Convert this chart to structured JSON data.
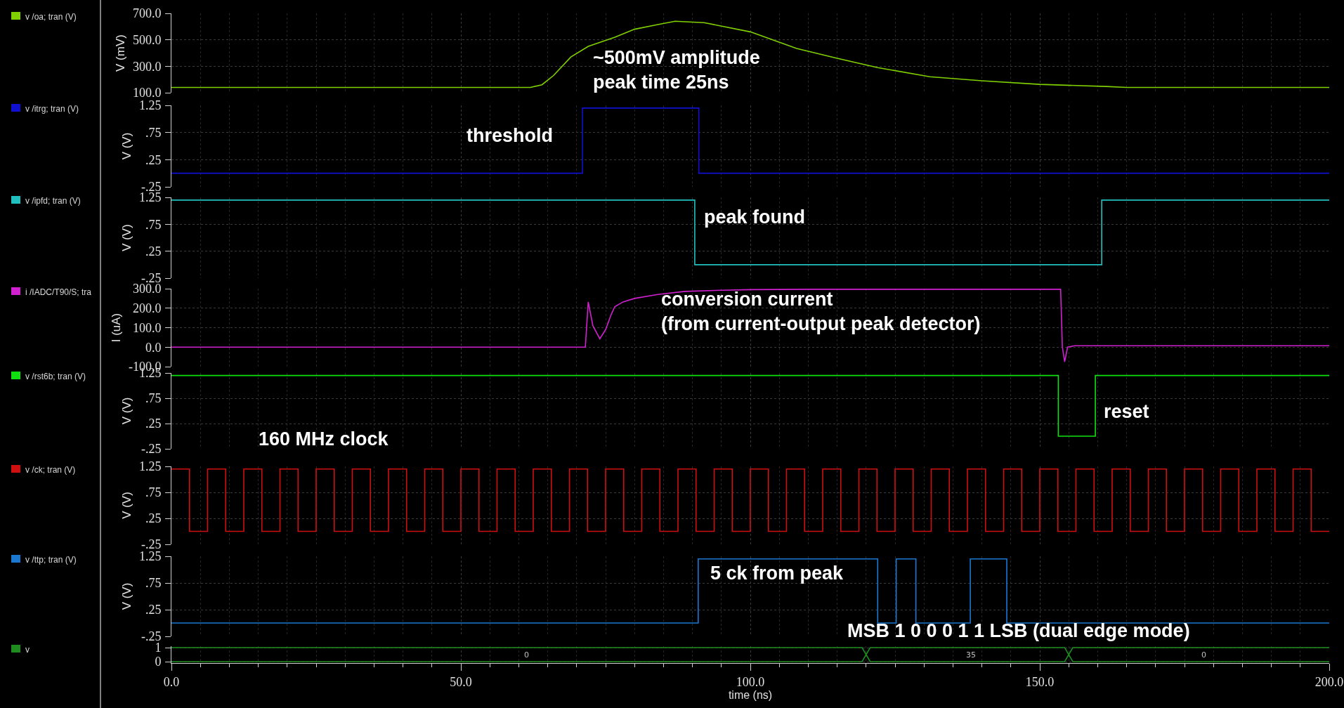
{
  "chart_data": [
    {
      "type": "line",
      "xlim": [
        0,
        200
      ],
      "tick_labels": "y",
      "grid": true,
      "ylabel": "V (mV)",
      "ylim": [
        100,
        700
      ],
      "yticks": [
        {
          "value": 100,
          "label": "100.0"
        },
        {
          "value": 300,
          "label": "300.0"
        },
        {
          "value": 500,
          "label": "500.0"
        },
        {
          "value": 700,
          "label": "700.0"
        }
      ],
      "series": [
        {
          "name": "v /oa; tran (V)",
          "color": "#80d000",
          "x": [
            0,
            62,
            64,
            66,
            69,
            72,
            76.6,
            80,
            84,
            87,
            92,
            100,
            108,
            115,
            122,
            131,
            140,
            150,
            161.5,
            165,
            200
          ],
          "values": [
            140,
            140,
            160,
            230,
            370,
            450,
            519,
            580,
            615,
            640,
            630,
            560,
            434,
            360,
            290,
            221,
            190,
            163,
            147,
            140,
            140
          ]
        }
      ],
      "annotations": [
        "~500mV amplitude\npeak time 25ns"
      ]
    },
    {
      "type": "step",
      "xlim": [
        0,
        200
      ],
      "tick_labels": "y",
      "grid": true,
      "ylabel": "V (V)",
      "ylim": [
        -0.25,
        1.25
      ],
      "yticks": [
        {
          "value": -0.25,
          "label": "-.25"
        },
        {
          "value": 0.25,
          "label": ".25"
        },
        {
          "value": 0.75,
          "label": ".75"
        },
        {
          "value": 1.25,
          "label": "1.25"
        }
      ],
      "series": [
        {
          "name": "v /itrg; tran (V)",
          "color": "#1010d0",
          "x": [
            0,
            71,
            91.1,
            200
          ],
          "values": [
            0,
            1.2,
            0,
            0
          ]
        }
      ],
      "annotations": [
        "threshold"
      ]
    },
    {
      "type": "step",
      "xlim": [
        0,
        200
      ],
      "tick_labels": "y",
      "grid": true,
      "ylabel": "V (V)",
      "ylim": [
        -0.25,
        1.25
      ],
      "yticks": [
        {
          "value": -0.25,
          "label": "-.25"
        },
        {
          "value": 0.25,
          "label": ".25"
        },
        {
          "value": 0.75,
          "label": ".75"
        },
        {
          "value": 1.25,
          "label": "1.25"
        }
      ],
      "series": [
        {
          "name": "v /ipfd; tran (V)",
          "color": "#20c0c0",
          "x": [
            0,
            90.4,
            160.7,
            200
          ],
          "values": [
            1.2,
            0,
            1.2,
            1.2
          ]
        }
      ],
      "annotations": [
        "peak found"
      ]
    },
    {
      "type": "line",
      "xlim": [
        0,
        200
      ],
      "tick_labels": "y",
      "grid": true,
      "ylabel": "I (uA)",
      "ylim": [
        -100,
        300
      ],
      "yticks": [
        {
          "value": -100,
          "label": "-100.0"
        },
        {
          "value": 0,
          "label": "0.0"
        },
        {
          "value": 100,
          "label": "100.0"
        },
        {
          "value": 200,
          "label": "200.0"
        },
        {
          "value": 300,
          "label": "300.0"
        }
      ],
      "series": [
        {
          "name": "i /IADC/T90/S; tra",
          "color": "#d020d0",
          "x": [
            0,
            71.5,
            72,
            72.8,
            74,
            75,
            76,
            76.6,
            78,
            80,
            84,
            88.7,
            95,
            100,
            110,
            120,
            140,
            153.6,
            153.9,
            154.3,
            154.8,
            156,
            200
          ],
          "values": [
            0,
            0,
            232,
            110,
            43,
            90,
            170,
            208,
            232,
            250,
            270,
            286,
            292,
            295,
            297,
            297,
            297,
            297,
            0,
            -75,
            0,
            7,
            7
          ]
        }
      ],
      "annotations": [
        "conversion current\n(from current-output peak detector)"
      ]
    },
    {
      "type": "step",
      "xlim": [
        0,
        200
      ],
      "tick_labels": "y",
      "grid": true,
      "ylabel": "V (V)",
      "ylim": [
        -0.25,
        1.25
      ],
      "yticks": [
        {
          "value": -0.25,
          "label": "-.25"
        },
        {
          "value": 0.25,
          "label": ".25"
        },
        {
          "value": 0.75,
          "label": ".75"
        },
        {
          "value": 1.25,
          "label": "1.25"
        }
      ],
      "series": [
        {
          "name": "v /rst6b; tran (V)",
          "color": "#10e010",
          "x": [
            0,
            153.2,
            159.6,
            200
          ],
          "values": [
            1.2,
            0,
            1.2,
            1.2
          ]
        }
      ],
      "annotations": [
        "reset",
        "160 MHz clock"
      ]
    },
    {
      "type": "step",
      "xlim": [
        0,
        200
      ],
      "tick_labels": "y",
      "grid": true,
      "ylabel": "V (V)",
      "ylim": [
        -0.25,
        1.25
      ],
      "yticks": [
        {
          "value": -0.25,
          "label": "-.25"
        },
        {
          "value": 0.25,
          "label": ".25"
        },
        {
          "value": 0.75,
          "label": ".75"
        },
        {
          "value": 1.25,
          "label": "1.25"
        }
      ],
      "series": [
        {
          "name": "v /ck; tran (V)",
          "color": "#d01010",
          "x": [
            0,
            3.125,
            6.25,
            9.375,
            12.5,
            15.625,
            18.75,
            21.875,
            25,
            28.125,
            31.25,
            34.375,
            37.5,
            40.625,
            43.75,
            46.875,
            50,
            53.125,
            56.25,
            59.375,
            62.5,
            65.625,
            68.75,
            71.875,
            75,
            78.125,
            81.25,
            84.375,
            87.5,
            90.625,
            93.75,
            96.875,
            100,
            103.125,
            106.25,
            109.375,
            112.5,
            115.625,
            118.75,
            121.875,
            125,
            128.125,
            131.25,
            134.375,
            137.5,
            140.625,
            143.75,
            146.875,
            150,
            153.125,
            156.25,
            159.375,
            162.5,
            165.625,
            168.75,
            171.875,
            175,
            178.125,
            181.25,
            184.375,
            187.5,
            190.625,
            193.75,
            196.875,
            200
          ],
          "values": [
            1.2,
            0,
            1.2,
            0,
            1.2,
            0,
            1.2,
            0,
            1.2,
            0,
            1.2,
            0,
            1.2,
            0,
            1.2,
            0,
            1.2,
            0,
            1.2,
            0,
            1.2,
            0,
            1.2,
            0,
            1.2,
            0,
            1.2,
            0,
            1.2,
            0,
            1.2,
            0,
            1.2,
            0,
            1.2,
            0,
            1.2,
            0,
            1.2,
            0,
            1.2,
            0,
            1.2,
            0,
            1.2,
            0,
            1.2,
            0,
            1.2,
            0,
            1.2,
            0,
            1.2,
            0,
            1.2,
            0,
            1.2,
            0,
            1.2,
            0,
            1.2,
            0,
            1.2,
            0,
            0
          ]
        }
      ]
    },
    {
      "type": "step",
      "xlim": [
        0,
        200
      ],
      "tick_labels": "y",
      "grid": true,
      "ylabel": "V (V)",
      "ylim": [
        -0.25,
        1.25
      ],
      "yticks": [
        {
          "value": -0.25,
          "label": "-.25"
        },
        {
          "value": 0.25,
          "label": ".25"
        },
        {
          "value": 0.75,
          "label": ".75"
        },
        {
          "value": 1.25,
          "label": "1.25"
        }
      ],
      "series": [
        {
          "name": "v /ttp; tran (V)",
          "color": "#1a78d0",
          "x": [
            0,
            91,
            122,
            125.2,
            128.6,
            138,
            144.3,
            200
          ],
          "values": [
            0,
            1.2,
            0,
            1.2,
            0,
            1.2,
            0,
            0
          ]
        }
      ],
      "annotations": [
        "5 ck from peak",
        "MSB 1 0 0 0 1 1 LSB (dual edge mode)"
      ]
    },
    {
      "type": "line",
      "xlim": [
        0,
        200
      ],
      "xticks": [
        {
          "value": 0,
          "label": "0.0"
        },
        {
          "value": 50,
          "label": "50.0"
        },
        {
          "value": 100,
          "label": "100.0"
        },
        {
          "value": 150,
          "label": "150.0"
        },
        {
          "value": 200,
          "label": "200.0"
        }
      ],
      "xlabel": "time (ns)",
      "grid": true,
      "ylim": [
        -0.1,
        1.1
      ],
      "yticks": [
        0,
        1
      ],
      "series": [
        {
          "name": "v",
          "color": "#1e8c1e",
          "x": [
            0,
            119.3,
            120,
            120.7,
            154.3,
            155,
            155.7,
            200
          ],
          "values": [
            1,
            1,
            0.5,
            1,
            1,
            0.5,
            1,
            1
          ]
        },
        {
          "color": "#1e8c1e",
          "x": [
            0,
            119.3,
            120,
            120.7,
            154.3,
            155,
            155.7,
            200
          ],
          "values": [
            0,
            0,
            0.5,
            0,
            0,
            0.5,
            0,
            0
          ]
        }
      ],
      "annotations": [
        "0",
        "35",
        "0"
      ]
    }
  ]
}
